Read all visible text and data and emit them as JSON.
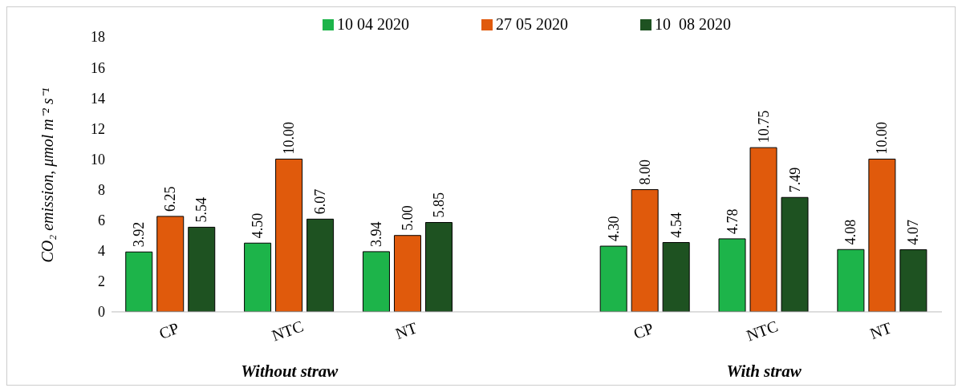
{
  "chart_data": {
    "type": "bar",
    "ylabel": "CO₂ emission, μmol m⁻² s⁻¹",
    "categories": [
      "CP",
      "NTC",
      "NT",
      null,
      "CP",
      "NTC",
      "NT"
    ],
    "series": [
      {
        "name": "10 04 2020",
        "color": "#1db44a",
        "values": [
          3.92,
          4.5,
          3.94,
          null,
          4.3,
          4.78,
          4.08
        ],
        "value_labels": [
          "3.92",
          "4.50",
          "3.94",
          null,
          "4.30",
          "4.78",
          "4.08"
        ]
      },
      {
        "name": "27 05 2020",
        "color": "#e05a0c",
        "values": [
          6.25,
          10.0,
          5.0,
          null,
          8.0,
          10.75,
          10.0
        ],
        "value_labels": [
          "6.25",
          "10.00",
          "5.00",
          null,
          "8.00",
          "10.75",
          "10.00"
        ]
      },
      {
        "name": "10  08 2020",
        "color": "#1e5221",
        "values": [
          5.54,
          6.07,
          5.85,
          null,
          4.54,
          7.49,
          4.07
        ],
        "value_labels": [
          "5.54",
          "6.07",
          "5.85",
          null,
          "4.54",
          "7.49",
          "4.07"
        ]
      }
    ],
    "ylim": [
      0,
      18
    ],
    "yticks": [
      0,
      2,
      4,
      6,
      8,
      10,
      12,
      14,
      16,
      18
    ],
    "grid": false,
    "legend": "top",
    "annotations": [
      "Without straw",
      "With straw"
    ]
  }
}
